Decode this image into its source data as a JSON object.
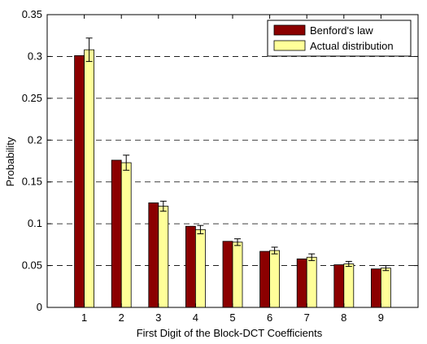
{
  "chart_data": {
    "type": "bar",
    "title": "",
    "xlabel": "First Digit of the Block-DCT Coefficients",
    "ylabel": "Probability",
    "categories": [
      "1",
      "2",
      "3",
      "4",
      "5",
      "6",
      "7",
      "8",
      "9"
    ],
    "ylim": [
      0,
      0.35
    ],
    "yticks": [
      "0",
      "0.05",
      "0.1",
      "0.15",
      "0.2",
      "0.25",
      "0.3",
      "0.35"
    ],
    "grid": "horizontal-dashed",
    "legend_position": "top-right",
    "series": [
      {
        "name": "Benford's law",
        "color": "#8b0000",
        "values": [
          0.301,
          0.176,
          0.125,
          0.097,
          0.079,
          0.067,
          0.058,
          0.051,
          0.046
        ]
      },
      {
        "name": "Actual distribution",
        "color": "#ffff99",
        "values": [
          0.308,
          0.173,
          0.121,
          0.093,
          0.078,
          0.068,
          0.06,
          0.052,
          0.047
        ],
        "errors": [
          0.014,
          0.009,
          0.006,
          0.005,
          0.004,
          0.004,
          0.004,
          0.003,
          0.003
        ]
      }
    ]
  }
}
